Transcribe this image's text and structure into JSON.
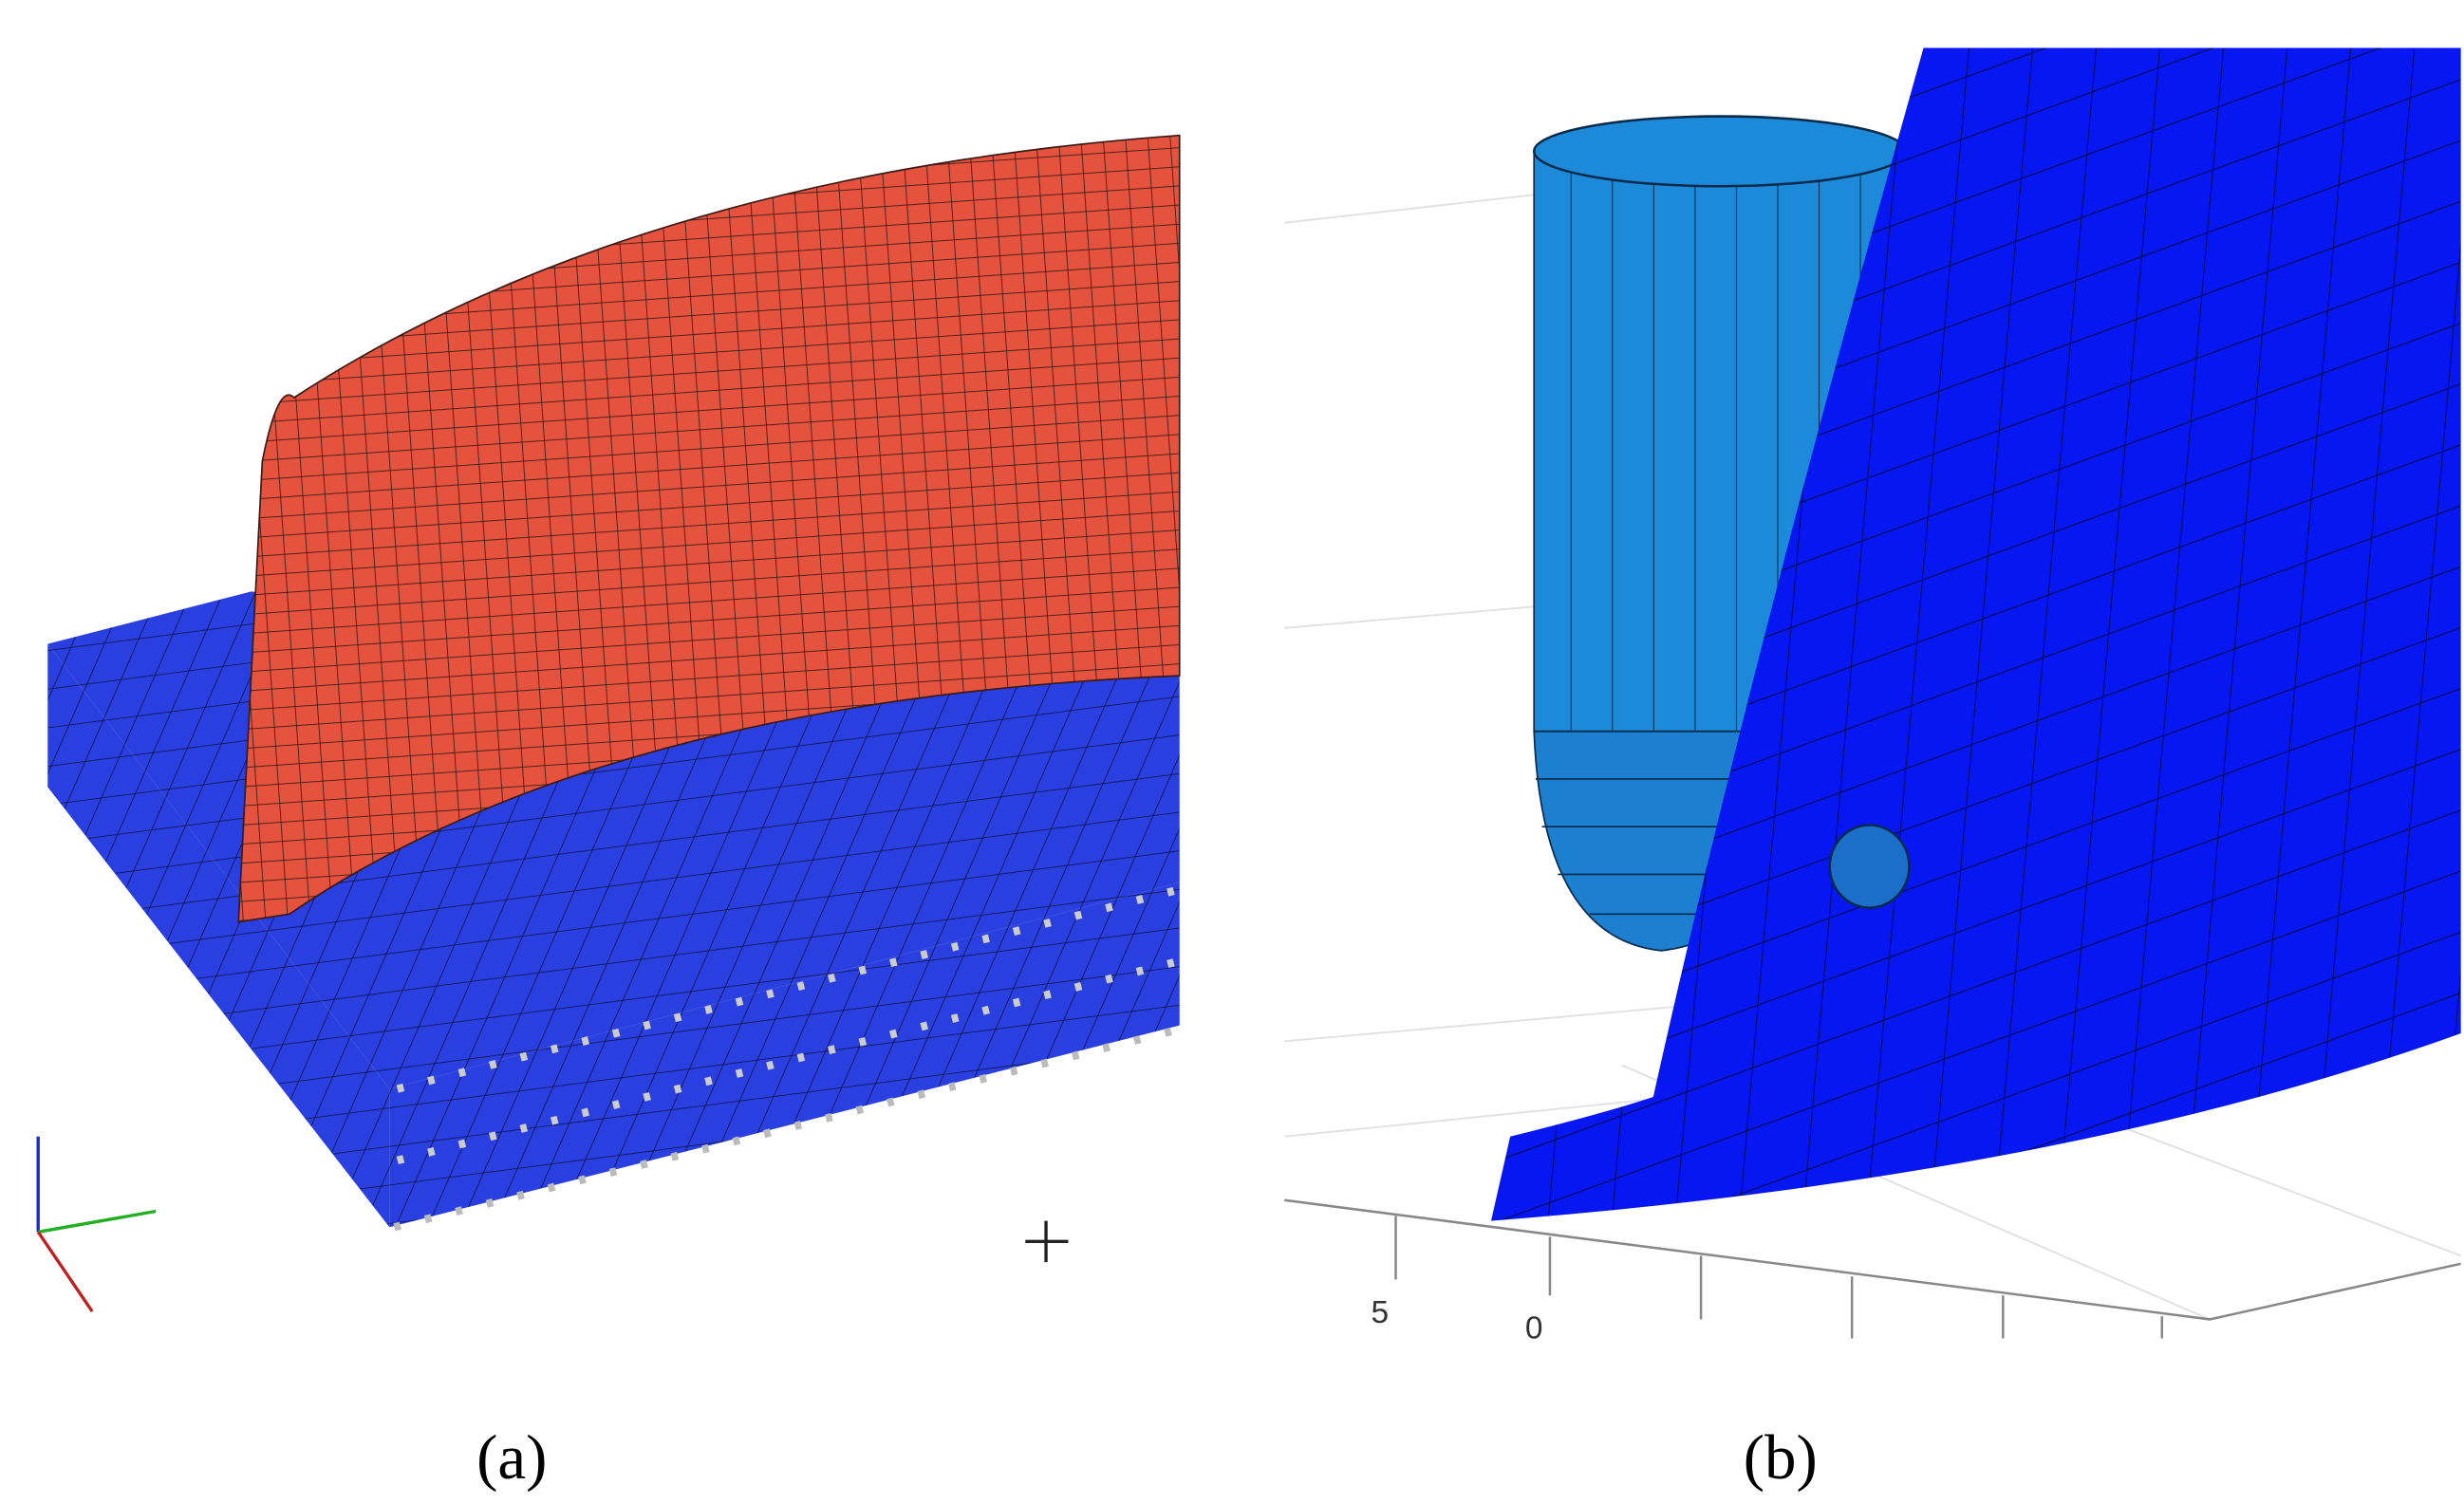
{
  "panels": [
    {
      "label": "(a)"
    },
    {
      "label": "(b)",
      "axis_tick_labels": [
        "5",
        "0"
      ]
    }
  ]
}
